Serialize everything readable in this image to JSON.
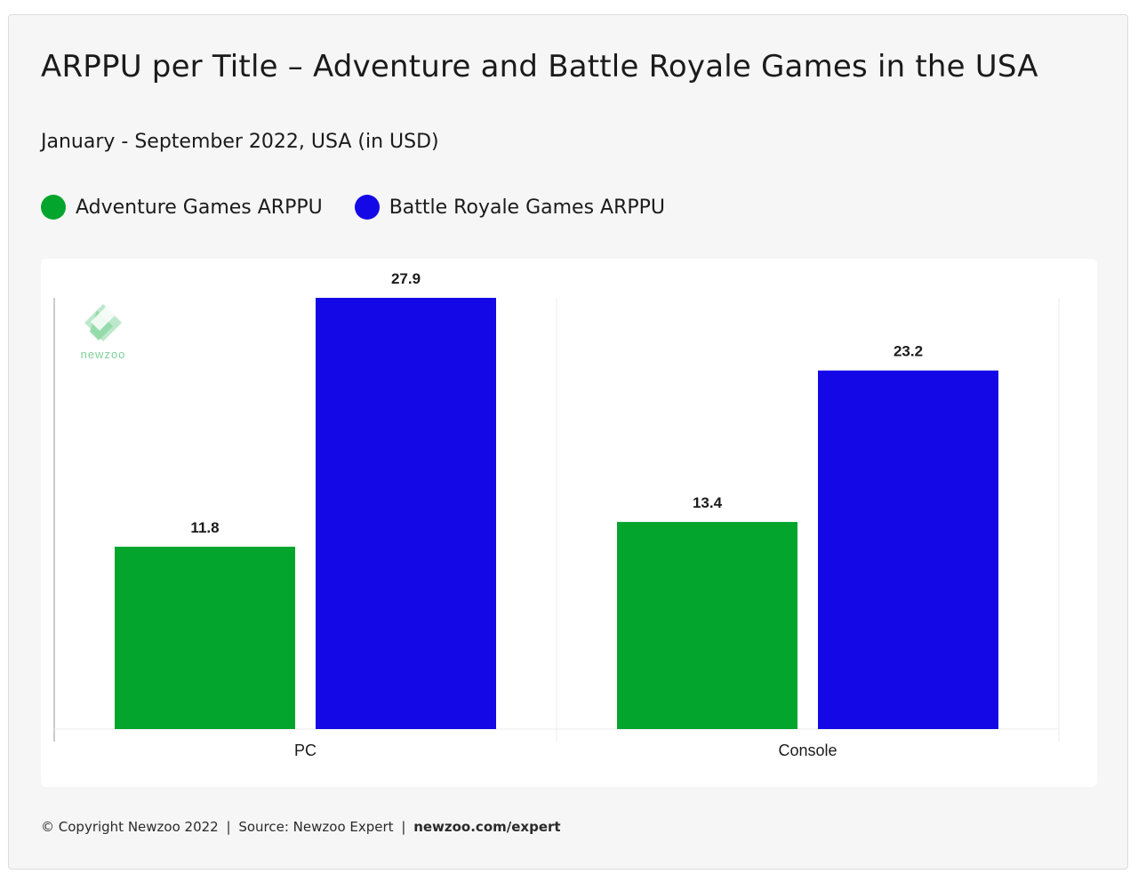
{
  "chart_data": {
    "type": "bar",
    "title": "ARPPU per Title – Adventure and Battle Royale Games in the USA",
    "subtitle": "January - September 2022, USA (in USD)",
    "categories": [
      "PC",
      "Console"
    ],
    "series": [
      {
        "name": "Adventure Games ARPPU",
        "color": "#03a52d",
        "values": [
          11.8,
          13.4
        ]
      },
      {
        "name": "Battle Royale Games ARPPU",
        "color": "#1409e6",
        "values": [
          27.9,
          23.2
        ]
      }
    ],
    "ylim": [
      0,
      27.9
    ],
    "grid": false,
    "legend_position": "top-left",
    "data_labels": true
  },
  "watermark": {
    "text": "newzoo",
    "color": "#7fd19a"
  },
  "footer": {
    "copyright": "© Copyright Newzoo 2022",
    "source": "Source: Newzoo Expert",
    "link": "newzoo.com/expert",
    "separator": "|"
  }
}
